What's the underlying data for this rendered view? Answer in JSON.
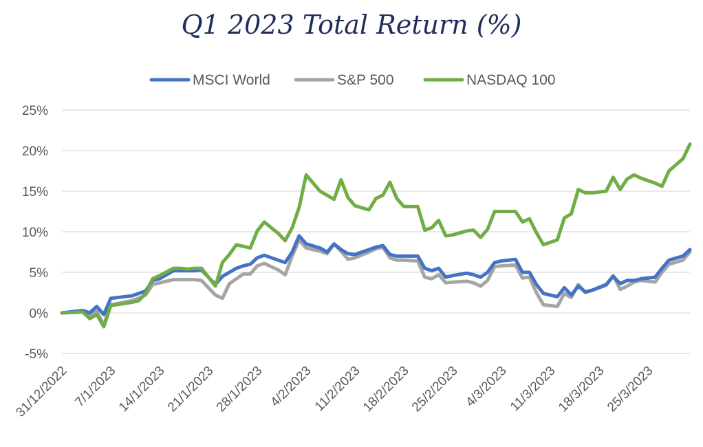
{
  "chart_data": {
    "type": "line",
    "title": "Q1 2023 Total Return (%)",
    "ylim": [
      -5,
      25
    ],
    "yticks": [
      -5,
      0,
      5,
      10,
      15,
      20,
      25
    ],
    "ytick_labels": [
      "-5%",
      "0%",
      "5%",
      "10%",
      "15%",
      "20%",
      "25%"
    ],
    "xlim": [
      "31/12/2022",
      "31/3/2023"
    ],
    "xtick_labels": [
      "31/12/2022",
      "7/1/2023",
      "14/1/2023",
      "21/1/2023",
      "28/1/2023",
      "4/2/2023",
      "11/2/2023",
      "18/2/2023",
      "25/2/2023",
      "4/3/2023",
      "11/3/2023",
      "18/3/2023",
      "25/3/2023"
    ],
    "grid": true,
    "legend_position": "top-center",
    "series": [
      {
        "name": "MSCI World",
        "color": "#4472c4",
        "points": [
          [
            "31/12/2022",
            0
          ],
          [
            "3/1/2023",
            0.3
          ],
          [
            "4/1/2023",
            0.0
          ],
          [
            "5/1/2023",
            0.8
          ],
          [
            "6/1/2023",
            -0.2
          ],
          [
            "7/1/2023",
            1.8
          ],
          [
            "10/1/2023",
            2.1
          ],
          [
            "11/1/2023",
            2.4
          ],
          [
            "12/1/2023",
            2.7
          ],
          [
            "13/1/2023",
            4.0
          ],
          [
            "14/1/2023",
            4.2
          ],
          [
            "16/1/2023",
            5.2
          ],
          [
            "17/1/2023",
            5.2
          ],
          [
            "18/1/2023",
            5.2
          ],
          [
            "19/1/2023",
            5.2
          ],
          [
            "20/1/2023",
            5.3
          ],
          [
            "22/1/2023",
            3.5
          ],
          [
            "23/1/2023",
            4.5
          ],
          [
            "24/1/2023",
            5.0
          ],
          [
            "25/1/2023",
            5.5
          ],
          [
            "26/1/2023",
            5.8
          ],
          [
            "27/1/2023",
            6.0
          ],
          [
            "28/1/2023",
            6.8
          ],
          [
            "29/1/2023",
            7.1
          ],
          [
            "31/1/2023",
            6.5
          ],
          [
            "1/2/2023",
            6.2
          ],
          [
            "2/2/2023",
            7.5
          ],
          [
            "3/2/2023",
            9.5
          ],
          [
            "4/2/2023",
            8.5
          ],
          [
            "6/2/2023",
            8.0
          ],
          [
            "7/2/2023",
            7.5
          ],
          [
            "8/2/2023",
            8.5
          ],
          [
            "9/2/2023",
            7.8
          ],
          [
            "10/2/2023",
            7.3
          ],
          [
            "11/2/2023",
            7.2
          ],
          [
            "13/2/2023",
            7.8
          ],
          [
            "14/2/2023",
            8.1
          ],
          [
            "15/2/2023",
            8.3
          ],
          [
            "16/2/2023",
            7.2
          ],
          [
            "17/2/2023",
            7.0
          ],
          [
            "18/2/2023",
            7.0
          ],
          [
            "20/2/2023",
            7.0
          ],
          [
            "21/2/2023",
            5.5
          ],
          [
            "22/2/2023",
            5.2
          ],
          [
            "23/2/2023",
            5.5
          ],
          [
            "24/2/2023",
            4.4
          ],
          [
            "25/2/2023",
            4.6
          ],
          [
            "27/2/2023",
            4.9
          ],
          [
            "28/2/2023",
            4.7
          ],
          [
            "1/3/2023",
            4.4
          ],
          [
            "2/3/2023",
            5.0
          ],
          [
            "3/3/2023",
            6.2
          ],
          [
            "4/3/2023",
            6.4
          ],
          [
            "6/3/2023",
            6.6
          ],
          [
            "7/3/2023",
            5.0
          ],
          [
            "8/3/2023",
            5.0
          ],
          [
            "9/3/2023",
            3.5
          ],
          [
            "10/3/2023",
            2.4
          ],
          [
            "12/3/2023",
            2.0
          ],
          [
            "13/3/2023",
            3.1
          ],
          [
            "14/3/2023",
            2.2
          ],
          [
            "15/3/2023",
            3.3
          ],
          [
            "16/3/2023",
            2.6
          ],
          [
            "17/3/2023",
            2.8
          ],
          [
            "19/3/2023",
            3.5
          ],
          [
            "20/3/2023",
            4.5
          ],
          [
            "21/3/2023",
            3.6
          ],
          [
            "22/3/2023",
            4.0
          ],
          [
            "23/3/2023",
            4.0
          ],
          [
            "24/3/2023",
            4.2
          ],
          [
            "26/3/2023",
            4.4
          ],
          [
            "27/3/2023",
            5.5
          ],
          [
            "28/3/2023",
            6.5
          ],
          [
            "30/3/2023",
            7.0
          ],
          [
            "31/3/2023",
            7.8
          ]
        ]
      },
      {
        "name": "S&P 500",
        "color": "#a5a5a5",
        "points": [
          [
            "31/12/2022",
            0
          ],
          [
            "3/1/2023",
            0.2
          ],
          [
            "4/1/2023",
            -0.3
          ],
          [
            "5/1/2023",
            0.2
          ],
          [
            "6/1/2023",
            -1.5
          ],
          [
            "7/1/2023",
            1.0
          ],
          [
            "10/1/2023",
            1.5
          ],
          [
            "11/1/2023",
            1.8
          ],
          [
            "12/1/2023",
            2.2
          ],
          [
            "13/1/2023",
            3.5
          ],
          [
            "14/1/2023",
            3.7
          ],
          [
            "16/1/2023",
            4.1
          ],
          [
            "17/1/2023",
            4.1
          ],
          [
            "18/1/2023",
            4.1
          ],
          [
            "19/1/2023",
            4.1
          ],
          [
            "20/1/2023",
            4.0
          ],
          [
            "22/1/2023",
            2.2
          ],
          [
            "23/1/2023",
            1.8
          ],
          [
            "24/1/2023",
            3.6
          ],
          [
            "25/1/2023",
            4.2
          ],
          [
            "26/1/2023",
            4.8
          ],
          [
            "27/1/2023",
            4.8
          ],
          [
            "28/1/2023",
            5.8
          ],
          [
            "29/1/2023",
            6.1
          ],
          [
            "31/1/2023",
            5.3
          ],
          [
            "1/2/2023",
            4.7
          ],
          [
            "2/2/2023",
            7.0
          ],
          [
            "3/2/2023",
            9.0
          ],
          [
            "4/2/2023",
            8.0
          ],
          [
            "6/2/2023",
            7.6
          ],
          [
            "7/2/2023",
            7.3
          ],
          [
            "8/2/2023",
            8.5
          ],
          [
            "9/2/2023",
            7.6
          ],
          [
            "10/2/2023",
            6.6
          ],
          [
            "11/2/2023",
            6.8
          ],
          [
            "13/2/2023",
            7.5
          ],
          [
            "14/2/2023",
            7.9
          ],
          [
            "15/2/2023",
            8.1
          ],
          [
            "16/2/2023",
            6.8
          ],
          [
            "17/2/2023",
            6.5
          ],
          [
            "18/2/2023",
            6.5
          ],
          [
            "20/2/2023",
            6.4
          ],
          [
            "21/2/2023",
            4.4
          ],
          [
            "22/2/2023",
            4.2
          ],
          [
            "23/2/2023",
            4.7
          ],
          [
            "24/2/2023",
            3.7
          ],
          [
            "25/2/2023",
            3.8
          ],
          [
            "27/2/2023",
            3.9
          ],
          [
            "28/2/2023",
            3.7
          ],
          [
            "1/3/2023",
            3.3
          ],
          [
            "2/3/2023",
            4.0
          ],
          [
            "3/3/2023",
            5.7
          ],
          [
            "4/3/2023",
            5.8
          ],
          [
            "6/3/2023",
            5.9
          ],
          [
            "7/3/2023",
            4.3
          ],
          [
            "8/3/2023",
            4.4
          ],
          [
            "9/3/2023",
            2.5
          ],
          [
            "10/3/2023",
            1.0
          ],
          [
            "12/3/2023",
            0.8
          ],
          [
            "13/3/2023",
            2.4
          ],
          [
            "14/3/2023",
            1.9
          ],
          [
            "15/3/2023",
            3.5
          ],
          [
            "16/3/2023",
            2.5
          ],
          [
            "17/3/2023",
            2.8
          ],
          [
            "19/3/2023",
            3.4
          ],
          [
            "20/3/2023",
            4.6
          ],
          [
            "21/3/2023",
            2.9
          ],
          [
            "22/3/2023",
            3.3
          ],
          [
            "23/3/2023",
            3.8
          ],
          [
            "24/3/2023",
            4.0
          ],
          [
            "26/3/2023",
            3.8
          ],
          [
            "27/3/2023",
            5.0
          ],
          [
            "28/3/2023",
            6.0
          ],
          [
            "30/3/2023",
            6.5
          ],
          [
            "31/3/2023",
            7.5
          ]
        ]
      },
      {
        "name": "NASDAQ 100",
        "color": "#70ad47",
        "points": [
          [
            "31/12/2022",
            0
          ],
          [
            "3/1/2023",
            0.1
          ],
          [
            "4/1/2023",
            -0.7
          ],
          [
            "5/1/2023",
            -0.2
          ],
          [
            "6/1/2023",
            -1.7
          ],
          [
            "7/1/2023",
            0.9
          ],
          [
            "10/1/2023",
            1.3
          ],
          [
            "11/1/2023",
            1.5
          ],
          [
            "12/1/2023",
            2.4
          ],
          [
            "13/1/2023",
            4.2
          ],
          [
            "14/1/2023",
            4.6
          ],
          [
            "16/1/2023",
            5.5
          ],
          [
            "17/1/2023",
            5.5
          ],
          [
            "18/1/2023",
            5.4
          ],
          [
            "19/1/2023",
            5.5
          ],
          [
            "20/1/2023",
            5.5
          ],
          [
            "22/1/2023",
            3.3
          ],
          [
            "23/1/2023",
            6.2
          ],
          [
            "24/1/2023",
            7.2
          ],
          [
            "25/1/2023",
            8.4
          ],
          [
            "26/1/2023",
            8.2
          ],
          [
            "27/1/2023",
            8.0
          ],
          [
            "28/1/2023",
            10.1
          ],
          [
            "29/1/2023",
            11.2
          ],
          [
            "31/1/2023",
            9.8
          ],
          [
            "1/2/2023",
            8.9
          ],
          [
            "2/2/2023",
            10.5
          ],
          [
            "3/2/2023",
            13.0
          ],
          [
            "4/2/2023",
            17.0
          ],
          [
            "6/2/2023",
            15.0
          ],
          [
            "7/2/2023",
            14.5
          ],
          [
            "8/2/2023",
            14.0
          ],
          [
            "9/2/2023",
            16.4
          ],
          [
            "10/2/2023",
            14.2
          ],
          [
            "11/2/2023",
            13.2
          ],
          [
            "13/2/2023",
            12.7
          ],
          [
            "14/2/2023",
            14.1
          ],
          [
            "15/2/2023",
            14.5
          ],
          [
            "16/2/2023",
            16.1
          ],
          [
            "17/2/2023",
            14.1
          ],
          [
            "18/2/2023",
            13.1
          ],
          [
            "20/2/2023",
            13.1
          ],
          [
            "21/2/2023",
            10.2
          ],
          [
            "22/2/2023",
            10.5
          ],
          [
            "23/2/2023",
            11.4
          ],
          [
            "24/2/2023",
            9.5
          ],
          [
            "25/2/2023",
            9.6
          ],
          [
            "27/2/2023",
            10.1
          ],
          [
            "28/2/2023",
            10.2
          ],
          [
            "1/3/2023",
            9.3
          ],
          [
            "2/3/2023",
            10.3
          ],
          [
            "3/3/2023",
            12.5
          ],
          [
            "4/3/2023",
            12.5
          ],
          [
            "6/3/2023",
            12.5
          ],
          [
            "7/3/2023",
            11.2
          ],
          [
            "8/3/2023",
            11.6
          ],
          [
            "9/3/2023",
            9.9
          ],
          [
            "10/3/2023",
            8.4
          ],
          [
            "12/3/2023",
            9.0
          ],
          [
            "13/3/2023",
            11.7
          ],
          [
            "14/3/2023",
            12.2
          ],
          [
            "15/3/2023",
            15.2
          ],
          [
            "16/3/2023",
            14.8
          ],
          [
            "17/3/2023",
            14.8
          ],
          [
            "19/3/2023",
            15.0
          ],
          [
            "20/3/2023",
            16.7
          ],
          [
            "21/3/2023",
            15.2
          ],
          [
            "22/3/2023",
            16.5
          ],
          [
            "23/3/2023",
            17.0
          ],
          [
            "24/3/2023",
            16.6
          ],
          [
            "26/3/2023",
            16.0
          ],
          [
            "27/3/2023",
            15.6
          ],
          [
            "28/3/2023",
            17.5
          ],
          [
            "30/3/2023",
            19.0
          ],
          [
            "31/3/2023",
            20.8
          ]
        ]
      }
    ]
  }
}
